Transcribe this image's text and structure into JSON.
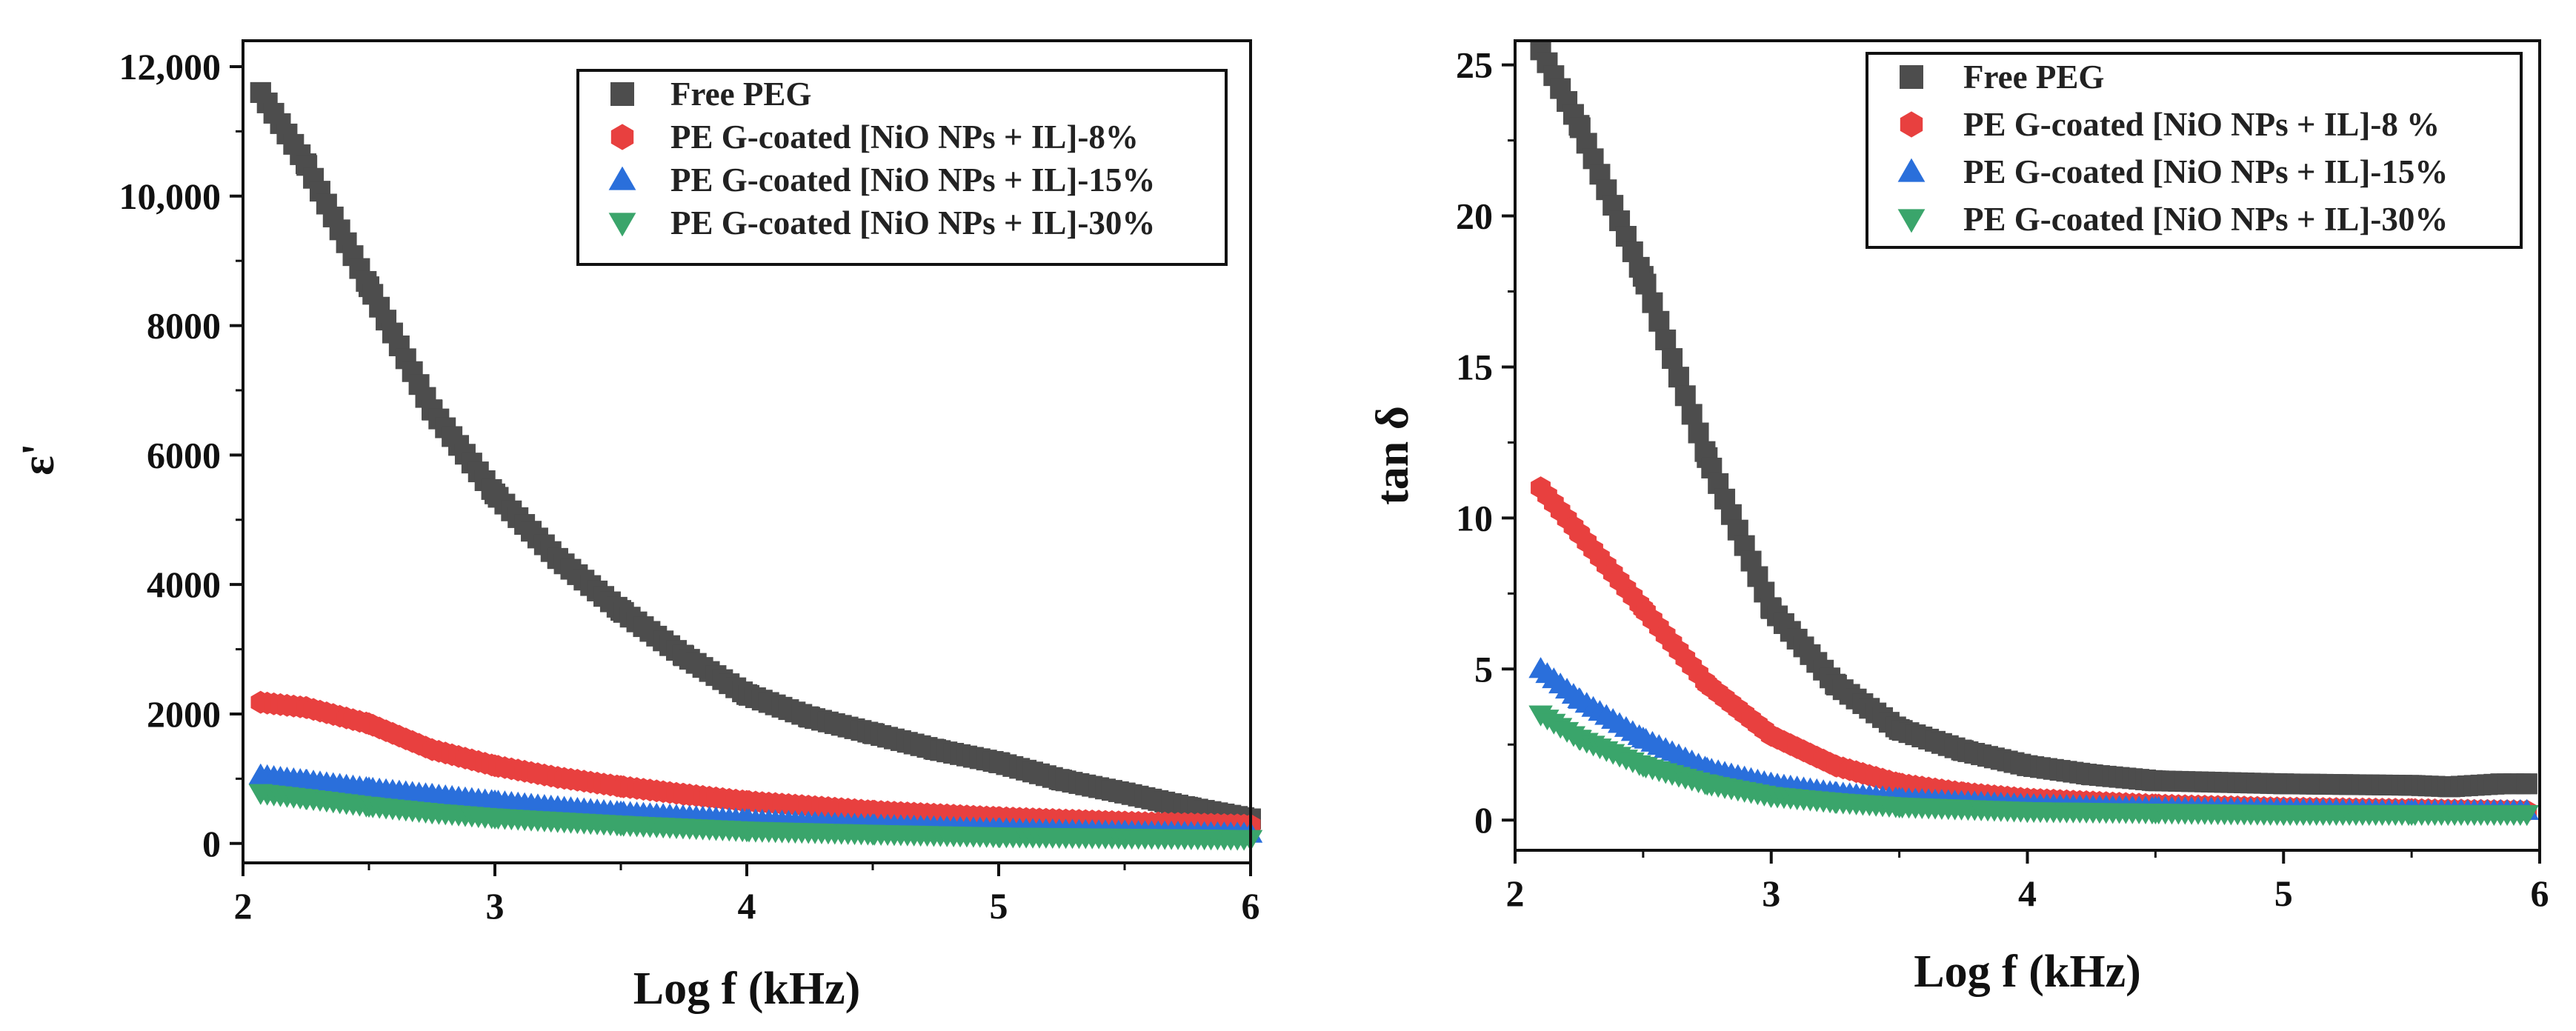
{
  "chart_data": [
    {
      "type": "scatter",
      "xlabel": "Log f (kHz)",
      "ylabel": "ε'",
      "xlim": [
        2,
        6
      ],
      "ylim": [
        -300,
        12400
      ],
      "xticks": [
        {
          "value": 2,
          "label": "2"
        },
        {
          "value": 3,
          "label": "3"
        },
        {
          "value": 4,
          "label": "4"
        },
        {
          "value": 5,
          "label": "5"
        },
        {
          "value": 6,
          "label": "6"
        }
      ],
      "yticks": [
        {
          "value": 0,
          "label": "0"
        },
        {
          "value": 2000,
          "label": "2000"
        },
        {
          "value": 4000,
          "label": "4000"
        },
        {
          "value": 6000,
          "label": "6000"
        },
        {
          "value": 8000,
          "label": "8000"
        },
        {
          "value": 10000,
          "label": "10,000"
        },
        {
          "value": 12000,
          "label": "12,000"
        }
      ],
      "legend_position": "top-right",
      "series": [
        {
          "name": "Free PEG",
          "marker": "square",
          "color": "#4d4d4d",
          "x": [
            2.07,
            2.25,
            2.5,
            2.75,
            3.0,
            3.25,
            3.5,
            3.75,
            4.0,
            4.25,
            4.5,
            4.75,
            5.0,
            5.25,
            5.5,
            5.75,
            6.0
          ],
          "y": [
            11600,
            10500,
            8600,
            6700,
            5400,
            4400,
            3600,
            2900,
            2300,
            1950,
            1700,
            1450,
            1250,
            980,
            780,
            560,
            380
          ]
        },
        {
          "name": "PE G-coated  [NiO NPs + IL]-8%",
          "marker": "hexagon",
          "color": "#e8403f",
          "x": [
            2.07,
            2.25,
            2.5,
            2.75,
            3.0,
            3.25,
            3.5,
            3.75,
            4.0,
            4.5,
            5.0,
            5.5,
            6.0
          ],
          "y": [
            2180,
            2100,
            1850,
            1450,
            1200,
            1020,
            880,
            760,
            650,
            500,
            400,
            330,
            280
          ]
        },
        {
          "name": "PE G-coated  [NiO NPs + IL]-15%",
          "marker": "triangle-up",
          "color": "#2a6fdb",
          "x": [
            2.07,
            2.25,
            2.5,
            2.75,
            3.0,
            3.25,
            3.5,
            4.0,
            4.5,
            5.0,
            5.5,
            6.0
          ],
          "y": [
            1050,
            970,
            850,
            750,
            650,
            560,
            480,
            360,
            280,
            220,
            180,
            150
          ]
        },
        {
          "name": "PE G-coated  [NiO NPs + IL]-30%",
          "marker": "triangle-down",
          "color": "#3aa56b",
          "x": [
            2.07,
            2.25,
            2.5,
            2.75,
            3.0,
            3.5,
            4.0,
            4.5,
            5.0,
            5.5,
            6.0
          ],
          "y": [
            780,
            700,
            580,
            480,
            400,
            290,
            200,
            150,
            110,
            90,
            70
          ]
        }
      ]
    },
    {
      "type": "scatter",
      "xlabel": "Log f (kHz)",
      "ylabel": "tan δ",
      "xlim": [
        2,
        6
      ],
      "ylim": [
        -1,
        25.8
      ],
      "xticks": [
        {
          "value": 2,
          "label": "2"
        },
        {
          "value": 3,
          "label": "3"
        },
        {
          "value": 4,
          "label": "4"
        },
        {
          "value": 5,
          "label": "5"
        },
        {
          "value": 6,
          "label": "6"
        }
      ],
      "yticks": [
        {
          "value": 0,
          "label": "0"
        },
        {
          "value": 5,
          "label": "5"
        },
        {
          "value": 10,
          "label": "10"
        },
        {
          "value": 15,
          "label": "15"
        },
        {
          "value": 20,
          "label": "20"
        },
        {
          "value": 25,
          "label": "25"
        }
      ],
      "legend_position": "top-right",
      "series": [
        {
          "name": "Free PEG",
          "marker": "square",
          "color": "#4d4d4d",
          "x": [
            2.1,
            2.25,
            2.5,
            2.75,
            3.0,
            3.25,
            3.5,
            3.75,
            4.0,
            4.25,
            4.5,
            5.0,
            5.5,
            5.65,
            5.85,
            5.95
          ],
          "y": [
            25.5,
            23.0,
            18.0,
            12.0,
            7.0,
            4.5,
            3.0,
            2.3,
            1.8,
            1.5,
            1.3,
            1.2,
            1.15,
            1.1,
            1.2,
            1.2
          ]
        },
        {
          "name": "PE G-coated  [NiO NPs + IL]-8 %",
          "marker": "hexagon",
          "color": "#e8403f",
          "x": [
            2.1,
            2.25,
            2.5,
            2.75,
            3.0,
            3.25,
            3.5,
            3.75,
            4.0,
            4.5,
            5.0,
            5.5,
            5.95
          ],
          "y": [
            11.0,
            9.5,
            7.0,
            4.5,
            2.8,
            1.8,
            1.2,
            0.9,
            0.7,
            0.5,
            0.4,
            0.35,
            0.3
          ]
        },
        {
          "name": "PE G-coated  [NiO NPs + IL]-15%",
          "marker": "triangle-up",
          "color": "#2a6fdb",
          "x": [
            2.1,
            2.25,
            2.5,
            2.75,
            3.0,
            3.25,
            3.5,
            4.0,
            4.5,
            5.0,
            5.5,
            5.95
          ],
          "y": [
            5.0,
            4.0,
            2.7,
            1.7,
            1.2,
            0.9,
            0.7,
            0.5,
            0.4,
            0.35,
            0.3,
            0.3
          ]
        },
        {
          "name": "PE G-coated  [NiO NPs + IL]-30%",
          "marker": "triangle-down",
          "color": "#3aa56b",
          "x": [
            2.1,
            2.25,
            2.5,
            2.75,
            3.0,
            3.25,
            3.5,
            4.0,
            4.5,
            5.0,
            5.5,
            5.95
          ],
          "y": [
            3.5,
            2.7,
            1.8,
            1.2,
            0.8,
            0.6,
            0.45,
            0.3,
            0.25,
            0.2,
            0.2,
            0.2
          ]
        }
      ]
    }
  ]
}
